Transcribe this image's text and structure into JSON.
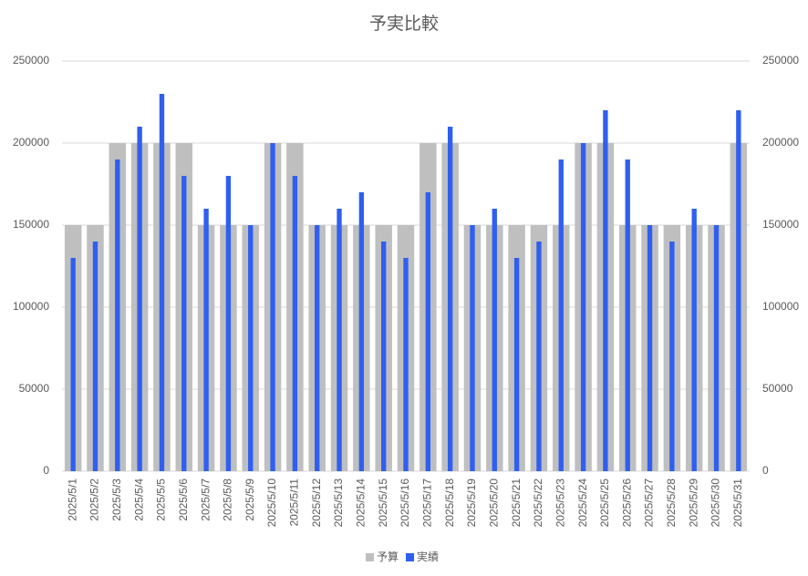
{
  "chart_data": {
    "type": "bar",
    "title": "予実比較",
    "categories": [
      "2025/5/1",
      "2025/5/2",
      "2025/5/3",
      "2025/5/4",
      "2025/5/5",
      "2025/5/6",
      "2025/5/7",
      "2025/5/8",
      "2025/5/9",
      "2025/5/10",
      "2025/5/11",
      "2025/5/12",
      "2025/5/13",
      "2025/5/14",
      "2025/5/15",
      "2025/5/16",
      "2025/5/17",
      "2025/5/18",
      "2025/5/19",
      "2025/5/20",
      "2025/5/21",
      "2025/5/22",
      "2025/5/23",
      "2025/5/24",
      "2025/5/25",
      "2025/5/26",
      "2025/5/27",
      "2025/5/28",
      "2025/5/29",
      "2025/5/30",
      "2025/5/31"
    ],
    "series": [
      {
        "name": "予算",
        "color": "#bfbfbf",
        "values": [
          150000,
          150000,
          200000,
          200000,
          200000,
          200000,
          150000,
          150000,
          150000,
          200000,
          200000,
          150000,
          150000,
          150000,
          150000,
          150000,
          200000,
          200000,
          150000,
          150000,
          150000,
          150000,
          150000,
          200000,
          200000,
          150000,
          150000,
          150000,
          150000,
          150000,
          200000
        ]
      },
      {
        "name": "実績",
        "color": "#2f5ff0",
        "axis": "y2",
        "values": [
          130000,
          140000,
          190000,
          210000,
          230000,
          180000,
          160000,
          180000,
          150000,
          200000,
          180000,
          150000,
          160000,
          170000,
          140000,
          130000,
          170000,
          210000,
          150000,
          160000,
          130000,
          140000,
          190000,
          200000,
          220000,
          190000,
          150000,
          140000,
          160000,
          150000,
          220000
        ]
      }
    ],
    "ylim": [
      0,
      250000
    ],
    "yticks": [
      0,
      50000,
      100000,
      150000,
      200000,
      250000
    ],
    "y2lim": [
      0,
      250000
    ],
    "y2ticks": [
      0,
      50000,
      100000,
      150000,
      200000,
      250000
    ],
    "grid": true,
    "legend": "bottom"
  }
}
